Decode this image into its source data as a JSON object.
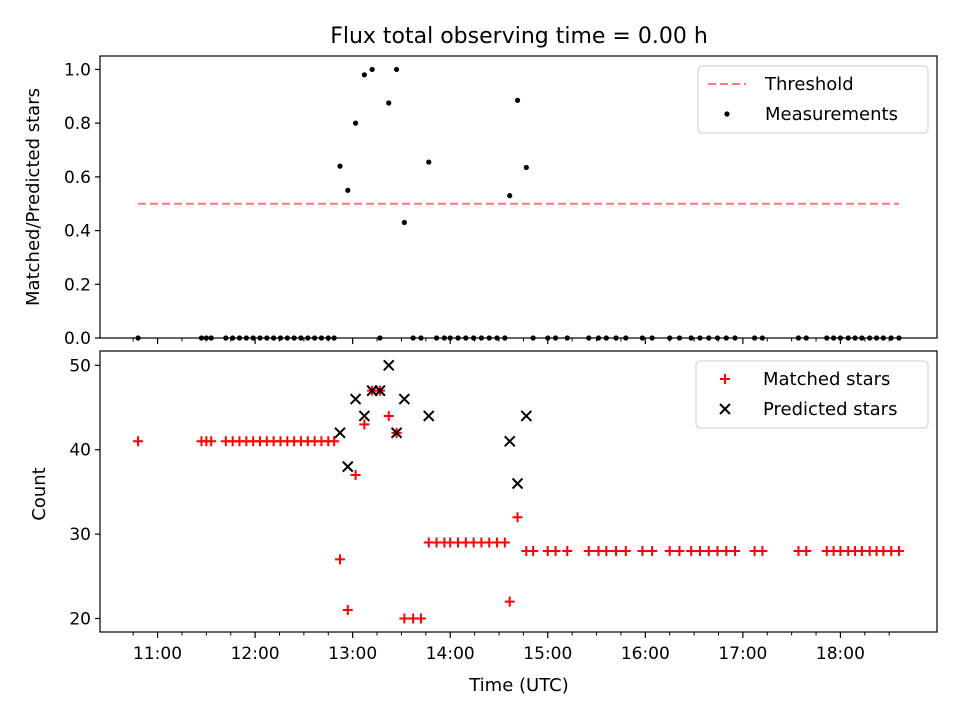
{
  "figure": {
    "title": "Flux total observing time = 0.00 h",
    "xlabel": "Time (UTC)",
    "xticks": [
      {
        "t": 11.0,
        "label": "11:00"
      },
      {
        "t": 12.0,
        "label": "12:00"
      },
      {
        "t": 13.0,
        "label": "13:00"
      },
      {
        "t": 14.0,
        "label": "14:00"
      },
      {
        "t": 15.0,
        "label": "15:00"
      },
      {
        "t": 16.0,
        "label": "16:00"
      },
      {
        "t": 17.0,
        "label": "17:00"
      },
      {
        "t": 18.0,
        "label": "18:00"
      }
    ],
    "x_minor_ticks": [
      10.75,
      11.25,
      11.5,
      11.75,
      12.25,
      12.5,
      12.75,
      13.25,
      13.5,
      13.75,
      14.25,
      14.5,
      14.75,
      15.25,
      15.5,
      15.75,
      16.25,
      16.5,
      16.75,
      17.25,
      17.5,
      17.75,
      18.25,
      18.5
    ],
    "xlim": [
      10.41,
      18.99
    ]
  },
  "chart_data": [
    {
      "type": "scatter",
      "panel": "top",
      "ylabel": "Matched/Predicted stars",
      "ylim": [
        0,
        1.05
      ],
      "yticks": [
        0.0,
        0.2,
        0.4,
        0.6,
        0.8,
        1.0
      ],
      "ytick_labels": [
        "0.0",
        "0.2",
        "0.4",
        "0.6",
        "0.8",
        "1.0"
      ],
      "legend_position": "top-right",
      "colors": {
        "threshold": "#ff7777",
        "measurements": "#000000"
      },
      "series": [
        {
          "name": "Threshold",
          "style": "dashed-line",
          "x": [
            10.8,
            18.6
          ],
          "y": [
            0.5,
            0.5
          ]
        },
        {
          "name": "Measurements",
          "style": "dot",
          "x": [
            10.8,
            11.45,
            11.5,
            11.55,
            11.7,
            11.77,
            11.84,
            11.91,
            11.98,
            12.05,
            12.12,
            12.19,
            12.26,
            12.33,
            12.4,
            12.47,
            12.54,
            12.61,
            12.68,
            12.75,
            12.81,
            12.87,
            12.95,
            13.03,
            13.12,
            13.2,
            13.28,
            13.37,
            13.45,
            13.53,
            13.62,
            13.7,
            13.78,
            13.86,
            13.94,
            14.0,
            14.08,
            14.16,
            14.24,
            14.32,
            14.4,
            14.48,
            14.56,
            14.61,
            14.69,
            14.78,
            14.85,
            15.0,
            15.08,
            15.2,
            15.42,
            15.52,
            15.6,
            15.7,
            15.8,
            15.97,
            16.07,
            16.25,
            16.35,
            16.47,
            16.56,
            16.65,
            16.74,
            16.83,
            16.92,
            17.12,
            17.2,
            17.57,
            17.65,
            17.86,
            17.93,
            18.0,
            18.08,
            18.15,
            18.22,
            18.3,
            18.37,
            18.44,
            18.52,
            18.6
          ],
          "y": [
            0,
            0,
            0,
            0,
            0,
            0,
            0,
            0,
            0,
            0,
            0,
            0,
            0,
            0,
            0,
            0,
            0,
            0,
            0,
            0,
            0,
            0.64,
            0.55,
            0.8,
            0.98,
            1.0,
            0,
            0.875,
            1.0,
            0.43,
            0,
            0,
            0.655,
            0,
            0,
            0,
            0,
            0,
            0,
            0,
            0,
            0,
            0,
            0.53,
            0.885,
            0.635,
            0,
            0,
            0,
            0,
            0,
            0,
            0,
            0,
            0,
            0,
            0,
            0,
            0,
            0,
            0,
            0,
            0,
            0,
            0,
            0,
            0,
            0,
            0,
            0,
            0,
            0,
            0,
            0,
            0,
            0,
            0,
            0,
            0,
            0
          ]
        }
      ]
    },
    {
      "type": "scatter",
      "panel": "bottom",
      "ylabel": "Count",
      "ylim": [
        18.4,
        51.7
      ],
      "yticks": [
        20,
        30,
        40,
        50
      ],
      "ytick_labels": [
        "20",
        "30",
        "40",
        "50"
      ],
      "legend_position": "top-right",
      "colors": {
        "matched": "#ff0000",
        "predicted": "#000000"
      },
      "series": [
        {
          "name": "Matched stars",
          "marker": "plus",
          "x": [
            10.8,
            11.45,
            11.5,
            11.55,
            11.7,
            11.77,
            11.84,
            11.91,
            11.98,
            12.05,
            12.12,
            12.19,
            12.26,
            12.33,
            12.4,
            12.47,
            12.54,
            12.61,
            12.68,
            12.75,
            12.81,
            12.87,
            12.95,
            13.03,
            13.12,
            13.2,
            13.28,
            13.37,
            13.45,
            13.53,
            13.62,
            13.7,
            13.78,
            13.86,
            13.94,
            14.0,
            14.08,
            14.16,
            14.24,
            14.32,
            14.4,
            14.48,
            14.56,
            14.61,
            14.69,
            14.78,
            14.85,
            15.0,
            15.08,
            15.2,
            15.42,
            15.52,
            15.6,
            15.7,
            15.8,
            15.97,
            16.07,
            16.25,
            16.35,
            16.47,
            16.56,
            16.65,
            16.74,
            16.83,
            16.92,
            17.12,
            17.2,
            17.57,
            17.65,
            17.86,
            17.93,
            18.0,
            18.08,
            18.15,
            18.22,
            18.3,
            18.37,
            18.44,
            18.52,
            18.6
          ],
          "y": [
            41,
            41,
            41,
            41,
            41,
            41,
            41,
            41,
            41,
            41,
            41,
            41,
            41,
            41,
            41,
            41,
            41,
            41,
            41,
            41,
            41,
            27,
            21,
            37,
            43,
            47,
            47,
            44,
            42,
            20,
            20,
            20,
            29,
            29,
            29,
            29,
            29,
            29,
            29,
            29,
            29,
            29,
            29,
            22,
            32,
            28,
            28,
            28,
            28,
            28,
            28,
            28,
            28,
            28,
            28,
            28,
            28,
            28,
            28,
            28,
            28,
            28,
            28,
            28,
            28,
            28,
            28,
            28,
            28,
            28,
            28,
            28,
            28,
            28,
            28,
            28,
            28,
            28,
            28,
            28
          ]
        },
        {
          "name": "Predicted stars",
          "marker": "x",
          "x": [
            12.87,
            12.95,
            13.03,
            13.12,
            13.2,
            13.28,
            13.37,
            13.45,
            13.53,
            13.78,
            14.61,
            14.69,
            14.78
          ],
          "y": [
            42,
            38,
            46,
            44,
            47,
            47,
            50,
            42,
            46,
            44,
            41,
            36,
            44
          ]
        }
      ]
    }
  ]
}
